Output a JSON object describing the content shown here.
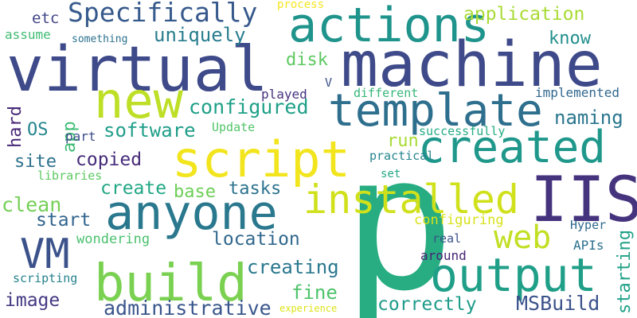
{
  "words": [
    {
      "id": "p",
      "text": "p",
      "color": "#27ad81"
    },
    {
      "id": "machine",
      "text": "machine",
      "color": "#3e4a89"
    },
    {
      "id": "virtual",
      "text": "virtual",
      "color": "#3e4a89"
    },
    {
      "id": "actions",
      "text": "actions",
      "color": "#1f948c"
    },
    {
      "id": "build",
      "text": "build",
      "color": "#7ad151"
    },
    {
      "id": "template",
      "text": "template",
      "color": "#2e6f8e"
    },
    {
      "id": "script",
      "text": "script",
      "color": "#f2e51d"
    },
    {
      "id": "created",
      "text": "created",
      "color": "#1f988b"
    },
    {
      "id": "anyone",
      "text": "anyone",
      "color": "#2a788e"
    },
    {
      "id": "installed",
      "text": "installed",
      "color": "#d0e11c"
    },
    {
      "id": "IIS",
      "text": "IIS",
      "color": "#46337e"
    },
    {
      "id": "output",
      "text": "output",
      "color": "#1f9f88"
    },
    {
      "id": "new",
      "text": "new",
      "color": "#bddf26"
    },
    {
      "id": "web",
      "text": "web",
      "color": "#c2df23"
    },
    {
      "id": "VM",
      "text": "VM",
      "color": "#3b528b"
    },
    {
      "id": "Specifically",
      "text": "Specifically",
      "color": "#375a8c"
    },
    {
      "id": "application",
      "text": "application",
      "color": "#a8db34"
    },
    {
      "id": "uniquely",
      "text": "uniquely",
      "color": "#287d8e"
    },
    {
      "id": "configured",
      "text": "configured",
      "color": "#1fa088"
    },
    {
      "id": "software",
      "text": "software",
      "color": "#1f9e89"
    },
    {
      "id": "copied",
      "text": "copied",
      "color": "#472c7a"
    },
    {
      "id": "create",
      "text": "create",
      "color": "#22a785"
    },
    {
      "id": "base",
      "text": "base",
      "color": "#6ece58"
    },
    {
      "id": "tasks",
      "text": "tasks",
      "color": "#2c728e"
    },
    {
      "id": "clean",
      "text": "clean",
      "color": "#73d056"
    },
    {
      "id": "start",
      "text": "start",
      "color": "#32648e"
    },
    {
      "id": "location",
      "text": "location",
      "color": "#31688e"
    },
    {
      "id": "creating",
      "text": "creating",
      "color": "#2a788e"
    },
    {
      "id": "image",
      "text": "image",
      "color": "#443983"
    },
    {
      "id": "administrative",
      "text": "administrative",
      "color": "#39568c"
    },
    {
      "id": "correctly",
      "text": "correctly",
      "color": "#1e9b8a"
    },
    {
      "id": "MSBuild",
      "text": "MSBuild",
      "color": "#3b528b"
    },
    {
      "id": "starting",
      "text": "starting",
      "color": "#1fa187"
    },
    {
      "id": "fine",
      "text": "fine",
      "color": "#4ec36b"
    },
    {
      "id": "run",
      "text": "run",
      "color": "#a8db34"
    },
    {
      "id": "naming",
      "text": "naming",
      "color": "#2a768e"
    },
    {
      "id": "know",
      "text": "know",
      "color": "#218f8d"
    },
    {
      "id": "disk",
      "text": "disk",
      "color": "#5ec962"
    },
    {
      "id": "etc",
      "text": "etc",
      "color": "#414487"
    },
    {
      "id": "process",
      "text": "process",
      "color": "#f6e620"
    },
    {
      "id": "assume",
      "text": "assume",
      "color": "#3fbc73"
    },
    {
      "id": "something",
      "text": "something",
      "color": "#2c728e"
    },
    {
      "id": "app",
      "text": "app",
      "color": "#3dbc74"
    },
    {
      "id": "OS",
      "text": "OS",
      "color": "#25858e"
    },
    {
      "id": "hard",
      "text": "hard",
      "color": "#482878"
    },
    {
      "id": "part",
      "text": "part",
      "color": "#3d4d8a"
    },
    {
      "id": "site",
      "text": "site",
      "color": "#2d718e"
    },
    {
      "id": "libraries",
      "text": "libraries",
      "color": "#5ec962"
    },
    {
      "id": "Update",
      "text": "Update",
      "color": "#52c569"
    },
    {
      "id": "played",
      "text": "played",
      "color": "#46327e"
    },
    {
      "id": "V",
      "text": "V",
      "color": "#3b528b"
    },
    {
      "id": "different",
      "text": "different",
      "color": "#35b779"
    },
    {
      "id": "implemented",
      "text": "implemented",
      "color": "#31688e"
    },
    {
      "id": "successfully",
      "text": "successfully",
      "color": "#25ac82"
    },
    {
      "id": "practical",
      "text": "practical",
      "color": "#25858e"
    },
    {
      "id": "set",
      "text": "set",
      "color": "#22a785"
    },
    {
      "id": "configuring",
      "text": "configuring",
      "color": "#d8e219"
    },
    {
      "id": "Hyper",
      "text": "Hyper",
      "color": "#306a8e"
    },
    {
      "id": "wondering",
      "text": "wondering",
      "color": "#4ac16d"
    },
    {
      "id": "real",
      "text": "real",
      "color": "#3b528b"
    },
    {
      "id": "APIs",
      "text": "APIs",
      "color": "#2c718e"
    },
    {
      "id": "around",
      "text": "around",
      "color": "#482475"
    },
    {
      "id": "scripting",
      "text": "scripting",
      "color": "#26828e"
    },
    {
      "id": "experience",
      "text": "experience",
      "color": "#dde318"
    }
  ]
}
